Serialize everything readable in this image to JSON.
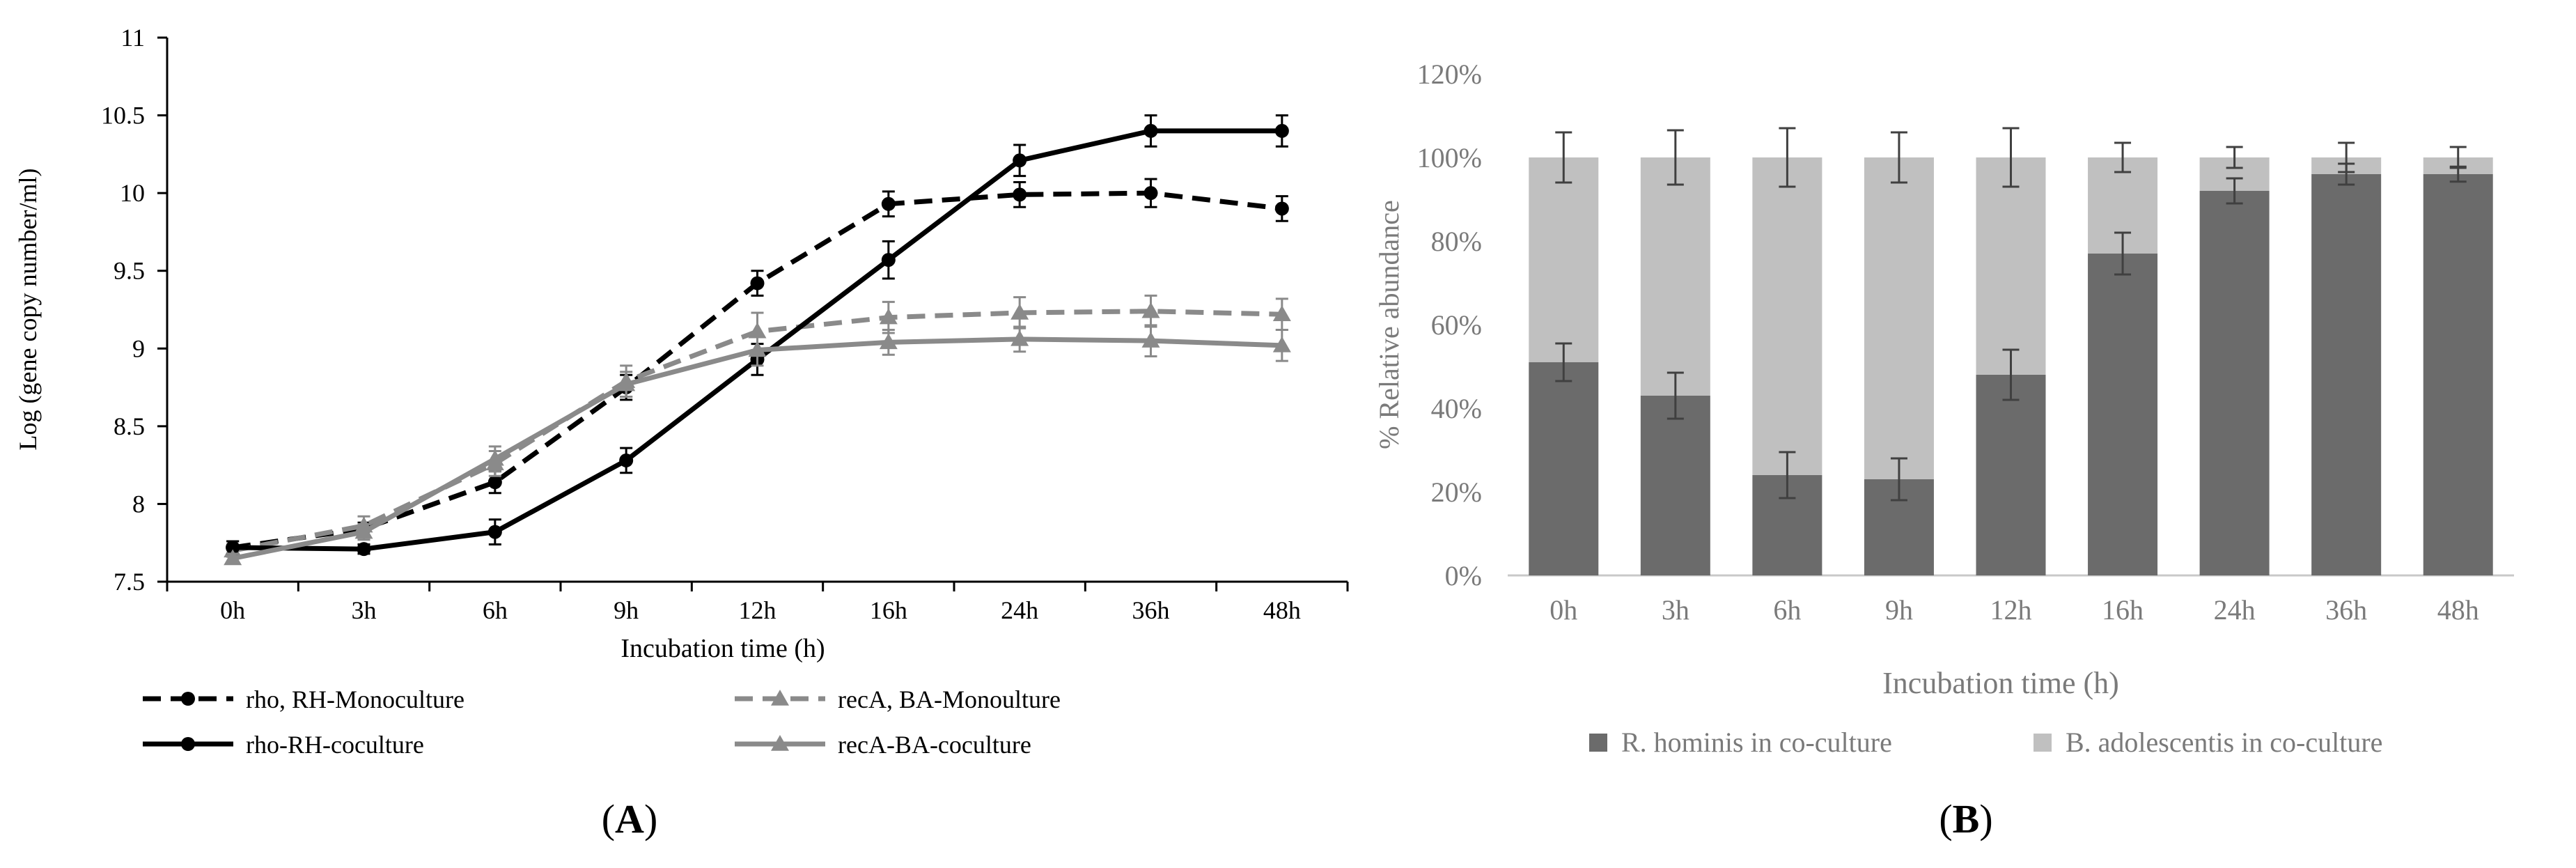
{
  "chart_data": [
    {
      "panel": "(A)",
      "panel_letter": "A",
      "type": "line",
      "xlabel": "Incubation time (h)",
      "ylabel": "Log (gene copy number/ml)",
      "ylim": [
        7.5,
        11
      ],
      "y_ticks": [
        "7.5",
        "8",
        "8.5",
        "9",
        "9.5",
        "10",
        "10.5",
        "11"
      ],
      "categories": [
        "0h",
        "3h",
        "6h",
        "9h",
        "12h",
        "16h",
        "24h",
        "36h",
        "48h"
      ],
      "series": [
        {
          "name": "rho, RH-Monoculture",
          "color": "#000000",
          "dash": true,
          "marker": "circle",
          "values": [
            7.72,
            7.84,
            8.14,
            8.75,
            9.42,
            9.93,
            9.99,
            10.0,
            9.9
          ],
          "errors": [
            0.04,
            0.04,
            0.07,
            0.08,
            0.08,
            0.08,
            0.08,
            0.09,
            0.08
          ]
        },
        {
          "name": "recA, BA-Monoulture",
          "color": "#8a8a8a",
          "dash": true,
          "marker": "triangle",
          "values": [
            7.7,
            7.86,
            8.26,
            8.79,
            9.11,
            9.2,
            9.23,
            9.24,
            9.22
          ],
          "errors": [
            0.04,
            0.06,
            0.08,
            0.1,
            0.12,
            0.1,
            0.1,
            0.1,
            0.1
          ]
        },
        {
          "name": "rho-RH-coculture",
          "color": "#000000",
          "dash": false,
          "marker": "circle",
          "values": [
            7.72,
            7.71,
            7.82,
            8.28,
            8.93,
            9.57,
            10.21,
            10.4,
            10.4
          ],
          "errors": [
            0.04,
            0.03,
            0.08,
            0.08,
            0.1,
            0.12,
            0.1,
            0.1,
            0.1
          ]
        },
        {
          "name": "recA-BA-coculture",
          "color": "#8a8a8a",
          "dash": false,
          "marker": "triangle",
          "values": [
            7.65,
            7.82,
            8.29,
            8.77,
            8.99,
            9.04,
            9.06,
            9.05,
            9.02
          ],
          "errors": [
            0.03,
            0.05,
            0.08,
            0.08,
            0.1,
            0.08,
            0.08,
            0.1,
            0.1
          ]
        }
      ]
    },
    {
      "panel": "(B)",
      "panel_letter": "B",
      "type": "bar",
      "stacked": true,
      "xlabel": "Incubation time (h)",
      "ylabel": "% Relative abundance",
      "ylim": [
        0,
        120
      ],
      "y_ticks": [
        "0%",
        "20%",
        "40%",
        "60%",
        "80%",
        "100%",
        "120%"
      ],
      "categories": [
        "0h",
        "3h",
        "6h",
        "9h",
        "12h",
        "16h",
        "24h",
        "36h",
        "48h"
      ],
      "series": [
        {
          "name": "R. hominis in co-culture",
          "color": "#6b6b6b",
          "values": [
            51,
            43,
            24,
            23,
            48,
            77,
            92,
            96,
            96
          ],
          "errors": [
            4.5,
            5.5,
            5.5,
            5,
            6,
            5,
            3,
            2.5,
            1.8
          ]
        },
        {
          "name": "B. adolescentis in co-culture",
          "color": "#c0c0c0",
          "values": [
            49,
            57,
            76,
            77,
            52,
            23,
            8,
            4,
            4
          ],
          "errors": [
            6,
            6.5,
            7,
            6,
            7,
            3.5,
            2.5,
            3.5,
            2.5
          ]
        }
      ]
    }
  ]
}
